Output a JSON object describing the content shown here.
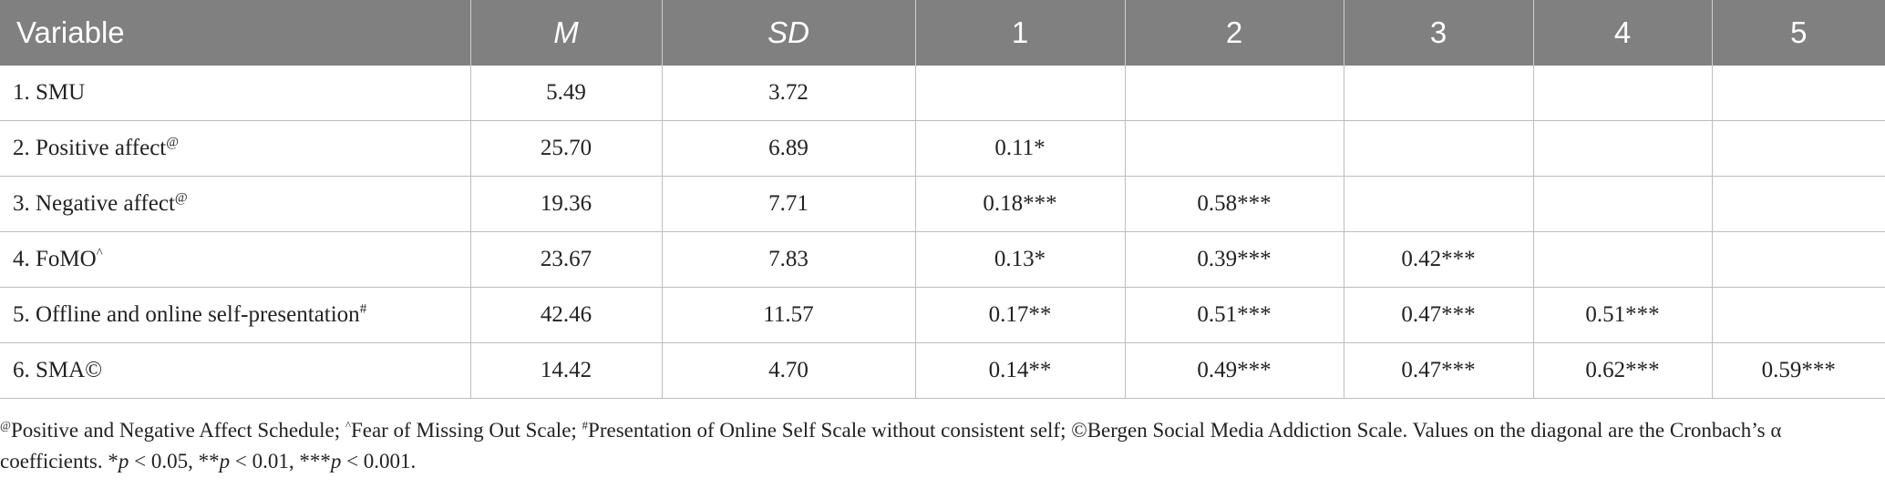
{
  "table": {
    "headers": [
      "Variable",
      "M",
      "SD",
      "1",
      "2",
      "3",
      "4",
      "5"
    ],
    "rows": [
      {
        "variable": "1. SMU",
        "marker": "",
        "m": "5.49",
        "sd": "3.72",
        "c1": "",
        "c2": "",
        "c3": "",
        "c4": "",
        "c5": ""
      },
      {
        "variable": "2. Positive affect",
        "marker": "@",
        "m": "25.70",
        "sd": "6.89",
        "c1": "0.11*",
        "c2": "",
        "c3": "",
        "c4": "",
        "c5": ""
      },
      {
        "variable": "3. Negative affect",
        "marker": "@",
        "m": "19.36",
        "sd": "7.71",
        "c1": "0.18***",
        "c2": "0.58***",
        "c3": "",
        "c4": "",
        "c5": ""
      },
      {
        "variable": "4. FoMO",
        "marker": "^",
        "m": "23.67",
        "sd": "7.83",
        "c1": "0.13*",
        "c2": "0.39***",
        "c3": "0.42***",
        "c4": "",
        "c5": ""
      },
      {
        "variable": "5. Offline and online self-presentation",
        "marker": "#",
        "m": "42.46",
        "sd": "11.57",
        "c1": "0.17**",
        "c2": "0.51***",
        "c3": "0.47***",
        "c4": "0.51***",
        "c5": ""
      },
      {
        "variable": "6. SMA©",
        "marker": "",
        "m": "14.42",
        "sd": "4.70",
        "c1": "0.14**",
        "c2": "0.49***",
        "c3": "0.47***",
        "c4": "0.62***",
        "c5": "0.59***"
      }
    ]
  },
  "note": {
    "m1": "@",
    "t1": "Positive and Negative Affect Schedule; ",
    "m2": "^",
    "t2": "Fear of Missing Out Scale; ",
    "m3": "#",
    "t3": "Presentation of Online Self Scale without consistent self; ©Bergen Social Media Addiction Scale. Values on the diagonal are the Cronbach’s α coefficients. *",
    "p1": "p",
    "t4": " < 0.05, **",
    "p2": "p",
    "t5": " < 0.01, ***",
    "p3": "p",
    "t6": " < 0.001."
  }
}
